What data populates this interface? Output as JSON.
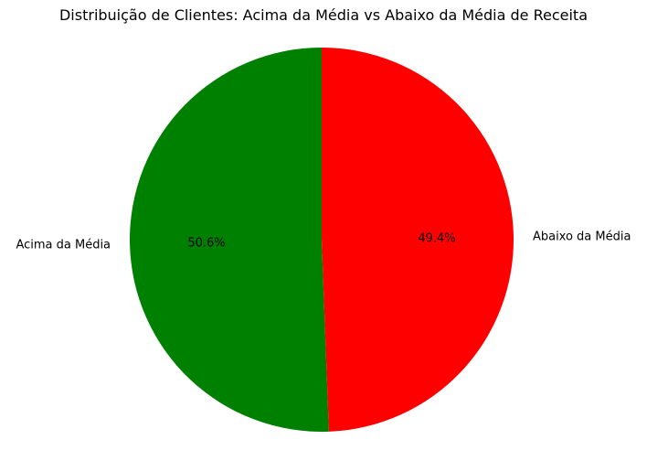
{
  "chart_data": {
    "type": "pie",
    "title": "Distribuição de Clientes: Acima da Média vs Abaixo da Média de Receita",
    "slices": [
      {
        "label": "Acima da Média",
        "value": 50.6,
        "pct_label": "50.6%",
        "color": "#008000"
      },
      {
        "label": "Abaixo da Média",
        "value": 49.4,
        "pct_label": "49.4%",
        "color": "#ff0000"
      }
    ],
    "start_angle_deg": 90,
    "direction": "counterclockwise",
    "legend": "none"
  }
}
